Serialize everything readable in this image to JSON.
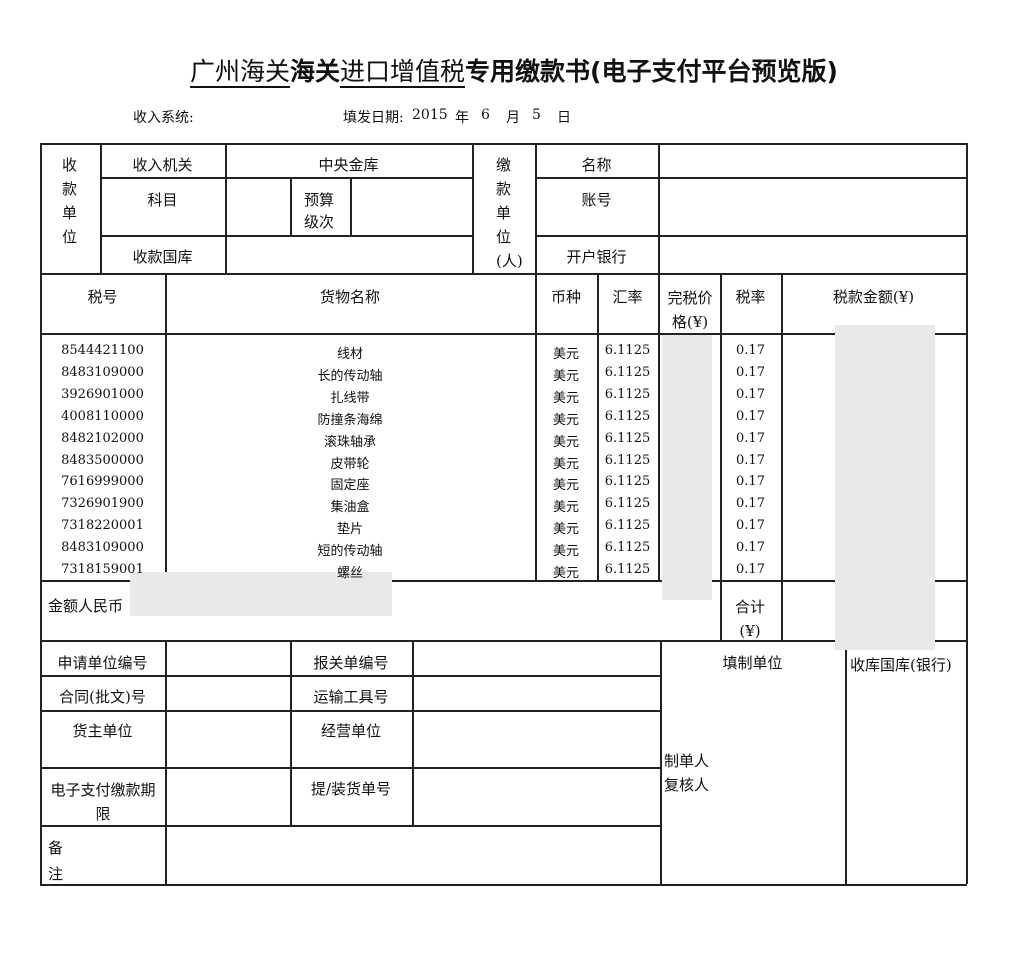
{
  "title": {
    "part1": "广州海关",
    "part2": "海关",
    "part3": "进口增值税",
    "part4": "专用缴款书(电子支付平台预览版)"
  },
  "meta": {
    "income_system_label": "收入系统:",
    "issue_date_label": "填发日期:",
    "year": "2015",
    "year_unit": "年",
    "month": "6",
    "month_unit": "月",
    "day": "5",
    "day_unit": "日"
  },
  "payee": {
    "section_label": "收款单位",
    "authority_label": "收入机关",
    "authority_value": "中央金库",
    "subject_label": "科目",
    "budget_level_label": "预算级次",
    "treasury_label": "收款国库"
  },
  "payer": {
    "section_label": "缴款单位(人)",
    "name_label": "名称",
    "account_label": "账号",
    "bank_label": "开户银行"
  },
  "columns": [
    "税号",
    "货物名称",
    "币种",
    "汇率",
    "完税价格(¥)",
    "税率",
    "税款金额(¥)"
  ],
  "items": [
    {
      "tax_no": "8544421100",
      "name": "线材",
      "currency": "美元",
      "rate": "6.1125",
      "tax_rate": "0.17"
    },
    {
      "tax_no": "8483109000",
      "name": "长的传动轴",
      "currency": "美元",
      "rate": "6.1125",
      "tax_rate": "0.17"
    },
    {
      "tax_no": "3926901000",
      "name": "扎线带",
      "currency": "美元",
      "rate": "6.1125",
      "tax_rate": "0.17"
    },
    {
      "tax_no": "4008110000",
      "name": "防撞条海绵",
      "currency": "美元",
      "rate": "6.1125",
      "tax_rate": "0.17"
    },
    {
      "tax_no": "8482102000",
      "name": "滚珠轴承",
      "currency": "美元",
      "rate": "6.1125",
      "tax_rate": "0.17"
    },
    {
      "tax_no": "8483500000",
      "name": "皮带轮",
      "currency": "美元",
      "rate": "6.1125",
      "tax_rate": "0.17"
    },
    {
      "tax_no": "7616999000",
      "name": "固定座",
      "currency": "美元",
      "rate": "6.1125",
      "tax_rate": "0.17"
    },
    {
      "tax_no": "7326901900",
      "name": "集油盒",
      "currency": "美元",
      "rate": "6.1125",
      "tax_rate": "0.17"
    },
    {
      "tax_no": "7318220001",
      "name": "垫片",
      "currency": "美元",
      "rate": "6.1125",
      "tax_rate": "0.17"
    },
    {
      "tax_no": "8483109000",
      "name": "短的传动轴",
      "currency": "美元",
      "rate": "6.1125",
      "tax_rate": "0.17"
    },
    {
      "tax_no": "7318159001",
      "name": "螺丝",
      "currency": "美元",
      "rate": "6.1125",
      "tax_rate": "0.17"
    }
  ],
  "totals": {
    "rmb_amount_label": "金额人民币",
    "total_label": "合计(¥)"
  },
  "lower": {
    "applicant_no": "申请单位编号",
    "declaration_no": "报关单编号",
    "contract_no": "合同(批文)号",
    "transport_no": "运输工具号",
    "owner": "货主单位",
    "operator": "经营单位",
    "payment_deadline": "电子支付缴款期限",
    "bill_no": "提/装货单号",
    "remarks": "备注",
    "filler": "填制单位",
    "preparer": "制单人",
    "reviewer": "复核人",
    "receiving_treasury": "收库国库(银行)"
  }
}
